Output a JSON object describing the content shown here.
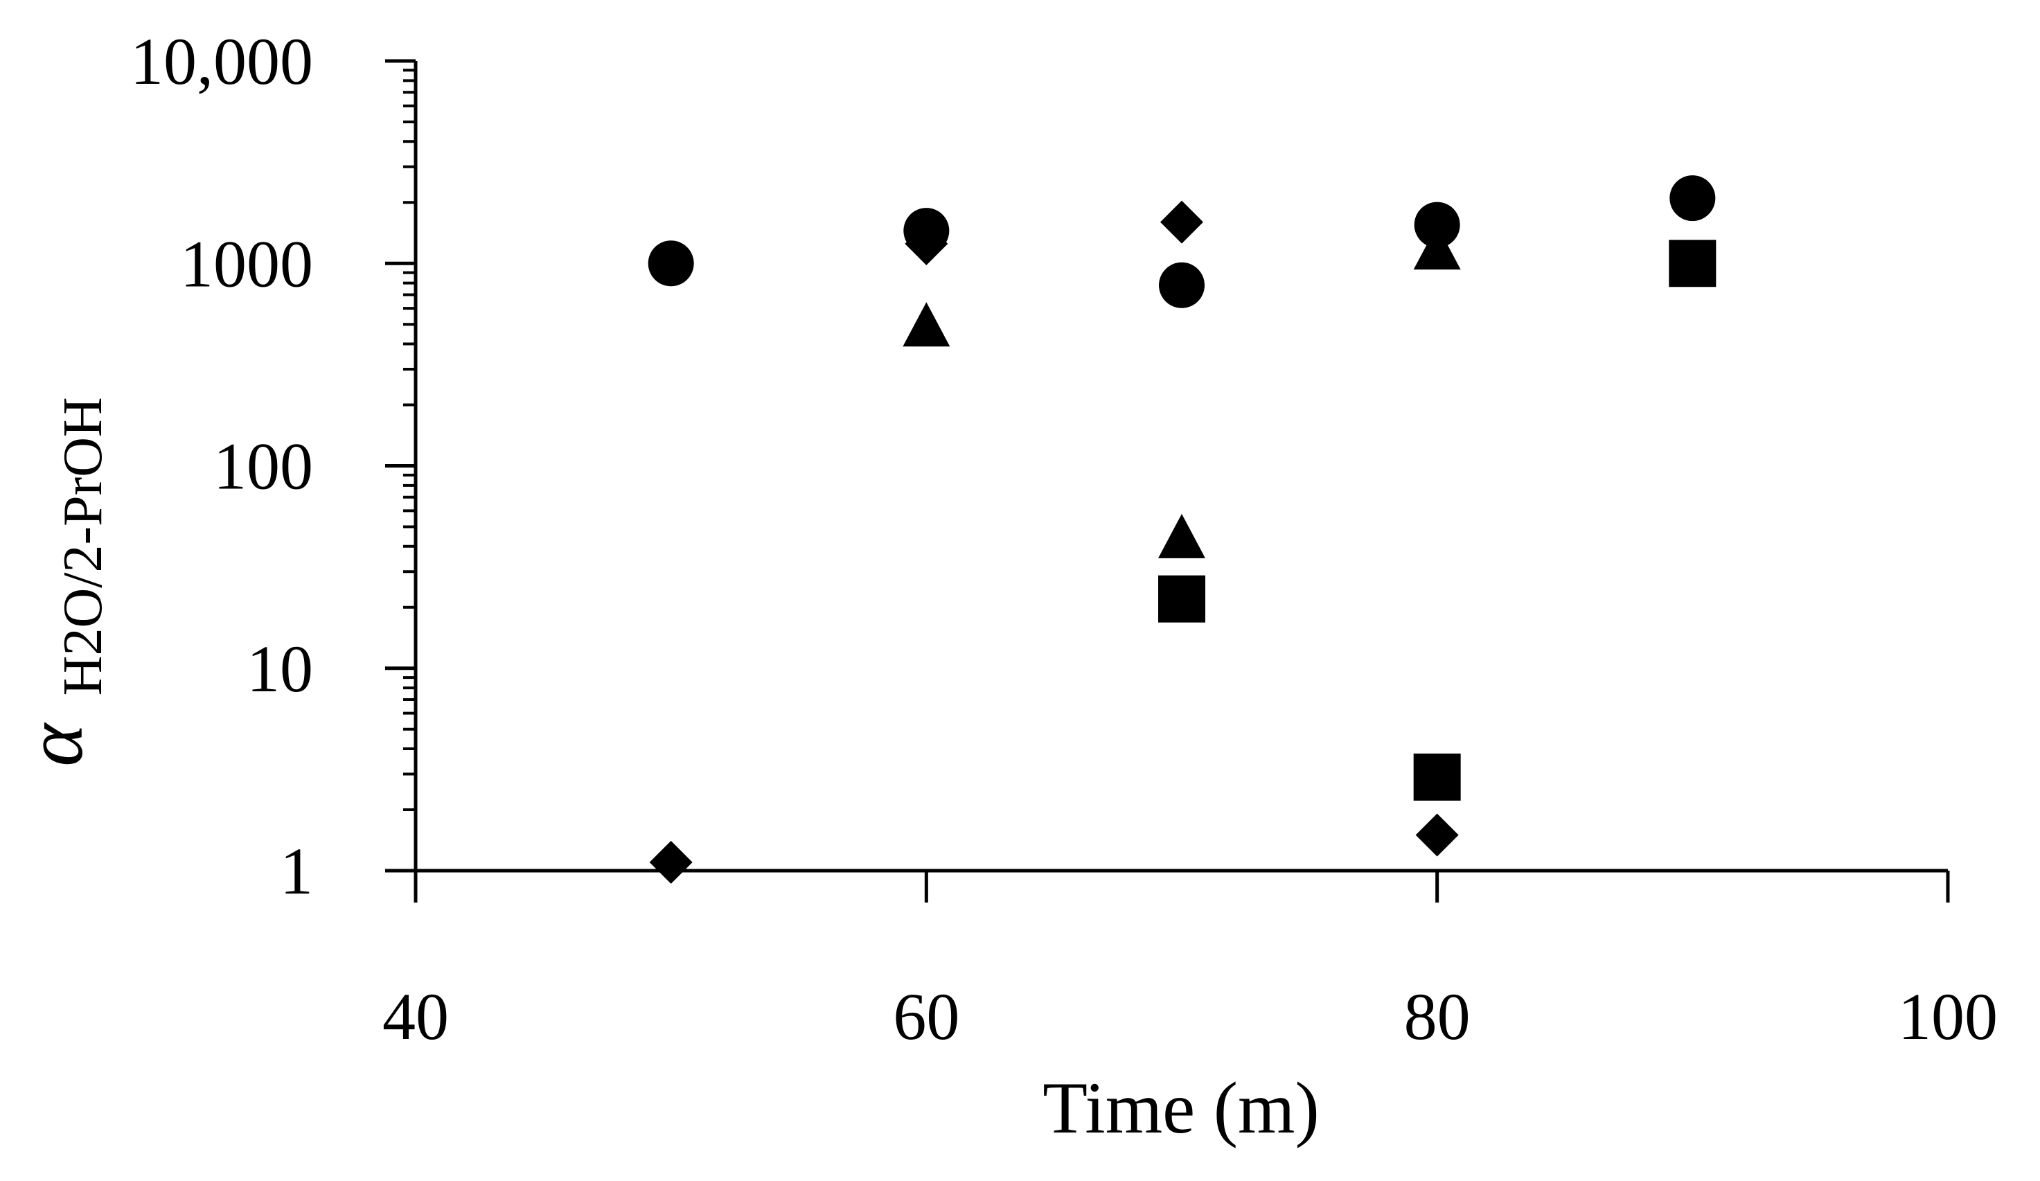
{
  "chart_data": {
    "type": "scatter",
    "xlabel": "Time (m)",
    "ylabel": {
      "main": "α",
      "subscript": "H2O/2-PrOH"
    },
    "xlim": [
      40,
      100
    ],
    "ylim": [
      1,
      10000
    ],
    "yscale": "log",
    "x_ticks": [
      {
        "value": 40,
        "label": "40"
      },
      {
        "value": 60,
        "label": "60"
      },
      {
        "value": 80,
        "label": "80"
      },
      {
        "value": 100,
        "label": "100"
      }
    ],
    "y_ticks": [
      {
        "value": 1,
        "label": "1"
      },
      {
        "value": 10,
        "label": "10"
      },
      {
        "value": 100,
        "label": "100"
      },
      {
        "value": 1000,
        "label": "1000"
      },
      {
        "value": 10000,
        "label": "10,000"
      }
    ],
    "grid": false,
    "legend": "none",
    "marker_color": "#000000",
    "series": [
      {
        "marker": "circle",
        "x": [
          50,
          60,
          70,
          80,
          90
        ],
        "y": [
          1000,
          1450,
          780,
          1550,
          2100
        ]
      },
      {
        "marker": "triangle",
        "x": [
          60,
          70,
          80
        ],
        "y": [
          500,
          45,
          1200
        ]
      },
      {
        "marker": "diamond",
        "x": [
          50,
          60,
          70,
          80
        ],
        "y": [
          1.1,
          1250,
          1600,
          1.5
        ]
      },
      {
        "marker": "square",
        "x": [
          70,
          80,
          90
        ],
        "y": [
          22,
          2.9,
          1000
        ]
      }
    ]
  }
}
